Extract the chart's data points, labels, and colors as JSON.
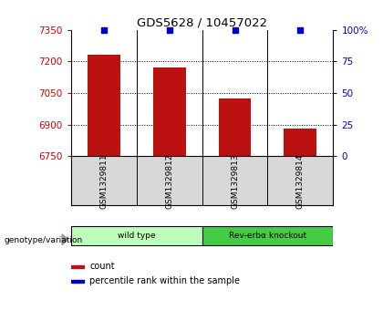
{
  "title": "GDS5628 / 10457022",
  "samples": [
    "GSM1329811",
    "GSM1329812",
    "GSM1329813",
    "GSM1329814"
  ],
  "counts": [
    7230,
    7170,
    7025,
    6880
  ],
  "percentiles": [
    100,
    100,
    100,
    100
  ],
  "ylim_left": [
    6750,
    7350
  ],
  "ylim_right": [
    0,
    100
  ],
  "yticks_left": [
    6750,
    6900,
    7050,
    7200,
    7350
  ],
  "yticks_right": [
    0,
    25,
    50,
    75,
    100
  ],
  "bar_color": "#bb1111",
  "percentile_color": "#0000cc",
  "groups": [
    {
      "label": "wild type",
      "samples": [
        0,
        1
      ],
      "color": "#bbffbb"
    },
    {
      "label": "Rev-erbα knockout",
      "samples": [
        2,
        3
      ],
      "color": "#44cc44"
    }
  ],
  "left_axis_color": "#cc0000",
  "right_axis_color": "#0000cc",
  "sample_bg_color": "#d8d8d8",
  "grid_color": "#000000",
  "legend_items": [
    {
      "label": "count",
      "color": "#bb1111"
    },
    {
      "label": "percentile rank within the sample",
      "color": "#0000cc"
    }
  ]
}
